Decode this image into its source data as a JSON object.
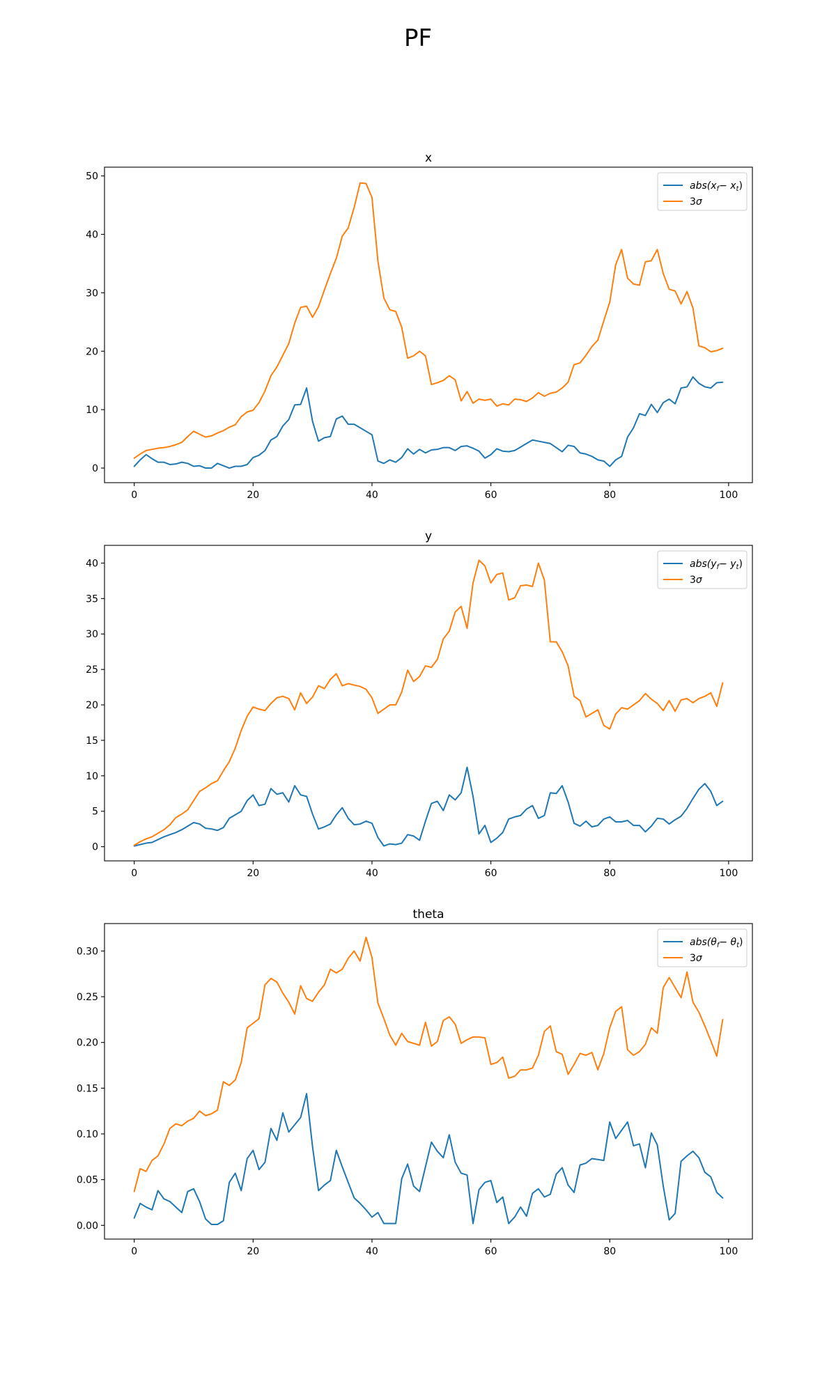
{
  "figure_title": "PF",
  "colors": {
    "error": "#1f77b4",
    "sigma": "#ff7f0e"
  },
  "chart_data": [
    {
      "type": "line",
      "title": "x",
      "xlim": [
        -5,
        104
      ],
      "ylim": [
        -2.5,
        51.5
      ],
      "xticks": [
        0,
        20,
        40,
        60,
        80,
        100
      ],
      "yticks": [
        0,
        10,
        20,
        30,
        40,
        50
      ],
      "ytick_labels": [
        "0",
        "10",
        "20",
        "30",
        "40",
        "50"
      ],
      "legend_position": "upper right",
      "series": [
        {
          "name": "abs(x_f − x_t)",
          "legend_math": [
            "abs(",
            "x",
            "f",
            "− ",
            "x",
            "t",
            ")"
          ],
          "color": "#1f77b4",
          "values": [
            0.3,
            1.4,
            2.3,
            1.6,
            1,
            1,
            0.6,
            0.7,
            1,
            0.8,
            0.3,
            0.4,
            0,
            0,
            0.8,
            0.4,
            0,
            0.3,
            0.3,
            0.6,
            1.8,
            2.2,
            3,
            4.8,
            5.4,
            7.2,
            8.3,
            10.8,
            10.9,
            13.7,
            8,
            4.6,
            5.2,
            5.4,
            8.4,
            8.9,
            7.5,
            7.5,
            6.9,
            6.3,
            5.7,
            1.2,
            0.8,
            1.4,
            1,
            1.8,
            3.3,
            2.4,
            3.2,
            2.6,
            3.1,
            3.2,
            3.5,
            3.5,
            3,
            3.7,
            3.8,
            3.4,
            2.9,
            1.7,
            2.3,
            3.3,
            2.9,
            2.8,
            3,
            3.6,
            4.2,
            4.8,
            4.6,
            4.4,
            4.2,
            3.5,
            2.8,
            3.9,
            3.7,
            2.6,
            2.4,
            2,
            1.4,
            1.2,
            0.3,
            1.4,
            2,
            5.3,
            6.9,
            9.3,
            9,
            10.9,
            9.5,
            11.2,
            11.8,
            11,
            13.7,
            13.9,
            15.6,
            14.5,
            13.9,
            13.7,
            14.6,
            14.7
          ]
        },
        {
          "name": "3σ",
          "legend_math": [
            "3",
            "σ"
          ],
          "color": "#ff7f0e",
          "values": [
            1.7,
            2.4,
            3,
            3.2,
            3.4,
            3.5,
            3.7,
            4,
            4.4,
            5.4,
            6.3,
            5.8,
            5.3,
            5.5,
            6,
            6.4,
            7,
            7.4,
            8.8,
            9.6,
            9.9,
            11.2,
            13.2,
            15.8,
            17.3,
            19.3,
            21.3,
            24.8,
            27.5,
            27.7,
            25.8,
            27.6,
            30.5,
            33.3,
            35.9,
            39.7,
            41.1,
            44.6,
            48.8,
            48.7,
            46.3,
            35.4,
            29.1,
            27.1,
            26.8,
            24.1,
            18.8,
            19.2,
            20,
            19.2,
            14.3,
            14.6,
            15,
            15.8,
            15.1,
            11.5,
            13.1,
            11.1,
            11.8,
            11.6,
            11.8,
            10.6,
            11,
            10.8,
            11.8,
            11.7,
            11.4,
            12,
            12.9,
            12.3,
            12.8,
            13,
            13.7,
            14.7,
            17.7,
            18,
            19.3,
            20.8,
            21.9,
            25.2,
            28.4,
            34.8,
            37.4,
            32.5,
            31.5,
            31.3,
            35.3,
            35.5,
            37.4,
            33.3,
            30.6,
            30.3,
            28.1,
            30.2,
            27.4,
            20.9,
            20.6,
            19.9,
            20.1,
            20.5
          ]
        }
      ]
    },
    {
      "type": "line",
      "title": "y",
      "xlim": [
        -5,
        104
      ],
      "ylim": [
        -2,
        42.5
      ],
      "xticks": [
        0,
        20,
        40,
        60,
        80,
        100
      ],
      "yticks": [
        0,
        5,
        10,
        15,
        20,
        25,
        30,
        35,
        40
      ],
      "ytick_labels": [
        "0",
        "5",
        "10",
        "15",
        "20",
        "25",
        "30",
        "35",
        "40"
      ],
      "legend_position": "upper right",
      "series": [
        {
          "name": "abs(y_f − y_t)",
          "legend_math": [
            "abs(",
            "y",
            "f",
            "− ",
            "y",
            "t",
            ")"
          ],
          "color": "#1f77b4",
          "values": [
            0.1,
            0.3,
            0.5,
            0.6,
            1,
            1.4,
            1.7,
            2,
            2.4,
            2.9,
            3.4,
            3.2,
            2.6,
            2.5,
            2.3,
            2.7,
            4,
            4.5,
            5,
            6.5,
            7.3,
            5.8,
            6,
            8.2,
            7.4,
            7.6,
            6.3,
            8.6,
            7.3,
            7.1,
            4.6,
            2.5,
            2.8,
            3.2,
            4.5,
            5.5,
            4,
            3.1,
            3.2,
            3.6,
            3.3,
            1.3,
            0.1,
            0.4,
            0.3,
            0.5,
            1.7,
            1.5,
            0.9,
            3.6,
            6.1,
            6.4,
            5.1,
            7.3,
            6.6,
            7.6,
            11.2,
            7.1,
            1.8,
            3,
            0.6,
            1.2,
            2,
            3.9,
            4.2,
            4.4,
            5.3,
            5.8,
            4,
            4.4,
            7.6,
            7.5,
            8.6,
            6.3,
            3.3,
            2.9,
            3.6,
            2.8,
            3,
            3.9,
            4.2,
            3.5,
            3.5,
            3.7,
            3,
            3,
            2.1,
            2.9,
            4,
            3.9,
            3.2,
            3.8,
            4.3,
            5.4,
            6.8,
            8.1,
            8.9,
            7.8,
            5.8,
            6.4
          ]
        },
        {
          "name": "3σ",
          "legend_math": [
            "3",
            "σ"
          ],
          "color": "#ff7f0e",
          "values": [
            0.2,
            0.7,
            1.1,
            1.4,
            1.9,
            2.4,
            3.1,
            4.1,
            4.6,
            5.2,
            6.5,
            7.8,
            8.3,
            8.9,
            9.3,
            10.7,
            12,
            13.9,
            16.4,
            18.4,
            19.7,
            19.4,
            19.2,
            20.2,
            21,
            21.2,
            20.9,
            19.3,
            21.7,
            20.2,
            21.1,
            22.7,
            22.3,
            23.6,
            24.4,
            22.7,
            23,
            22.8,
            22.6,
            22.2,
            21,
            18.8,
            19.4,
            20,
            20,
            21.8,
            24.9,
            23.3,
            24,
            25.5,
            25.3,
            26.4,
            29.3,
            30.4,
            33.1,
            33.9,
            30.8,
            37.2,
            40.4,
            39.6,
            37.2,
            38.4,
            38.6,
            34.8,
            35.1,
            36.8,
            36.9,
            36.7,
            40,
            37.6,
            28.9,
            28.9,
            27.5,
            25.5,
            21.2,
            20.6,
            18.3,
            18.8,
            19.3,
            17.1,
            16.6,
            18.7,
            19.6,
            19.4,
            20,
            20.6,
            21.6,
            20.8,
            20.2,
            19.2,
            20.6,
            19.1,
            20.7,
            20.9,
            20.3,
            20.9,
            21.2,
            21.7,
            19.8,
            23.1
          ]
        }
      ]
    },
    {
      "type": "line",
      "title": "theta",
      "xlim": [
        -5,
        104
      ],
      "ylim": [
        -0.015,
        0.33
      ],
      "xticks": [
        0,
        20,
        40,
        60,
        80,
        100
      ],
      "yticks": [
        0,
        0.05,
        0.1,
        0.15,
        0.2,
        0.25,
        0.3
      ],
      "ytick_labels": [
        "0.00",
        "0.05",
        "0.10",
        "0.15",
        "0.20",
        "0.25",
        "0.30"
      ],
      "legend_position": "upper right",
      "series": [
        {
          "name": "abs(θ_f − θ_t)",
          "legend_math": [
            "abs(",
            "θ",
            "f",
            "− ",
            "θ",
            "t",
            ")"
          ],
          "color": "#1f77b4",
          "values": [
            0.008,
            0.024,
            0.02,
            0.017,
            0.038,
            0.029,
            0.026,
            0.02,
            0.014,
            0.037,
            0.04,
            0.026,
            0.007,
            0.001,
            0.001,
            0.005,
            0.047,
            0.057,
            0.038,
            0.073,
            0.082,
            0.061,
            0.069,
            0.106,
            0.093,
            0.123,
            0.102,
            0.11,
            0.118,
            0.144,
            0.086,
            0.038,
            0.044,
            0.049,
            0.082,
            0.064,
            0.047,
            0.03,
            0.024,
            0.017,
            0.009,
            0.014,
            0.002,
            0.002,
            0.002,
            0.051,
            0.067,
            0.043,
            0.037,
            0.064,
            0.091,
            0.081,
            0.074,
            0.099,
            0.069,
            0.057,
            0.055,
            0.002,
            0.039,
            0.047,
            0.049,
            0.025,
            0.031,
            0.002,
            0.009,
            0.02,
            0.01,
            0.035,
            0.04,
            0.031,
            0.034,
            0.056,
            0.063,
            0.044,
            0.036,
            0.066,
            0.068,
            0.073,
            0.072,
            0.071,
            0.113,
            0.095,
            0.104,
            0.113,
            0.087,
            0.089,
            0.063,
            0.101,
            0.088,
            0.043,
            0.006,
            0.013,
            0.07,
            0.076,
            0.081,
            0.074,
            0.058,
            0.053,
            0.036,
            0.03
          ]
        },
        {
          "name": "3σ",
          "legend_math": [
            "3",
            "σ"
          ],
          "color": "#ff7f0e",
          "values": [
            0.037,
            0.062,
            0.059,
            0.071,
            0.076,
            0.089,
            0.106,
            0.111,
            0.109,
            0.114,
            0.117,
            0.125,
            0.12,
            0.122,
            0.126,
            0.157,
            0.153,
            0.159,
            0.178,
            0.216,
            0.221,
            0.226,
            0.263,
            0.27,
            0.266,
            0.254,
            0.244,
            0.231,
            0.262,
            0.248,
            0.245,
            0.255,
            0.263,
            0.28,
            0.276,
            0.28,
            0.292,
            0.3,
            0.289,
            0.315,
            0.293,
            0.243,
            0.226,
            0.208,
            0.197,
            0.21,
            0.201,
            0.199,
            0.197,
            0.222,
            0.196,
            0.201,
            0.224,
            0.228,
            0.22,
            0.199,
            0.203,
            0.206,
            0.206,
            0.205,
            0.176,
            0.178,
            0.184,
            0.161,
            0.163,
            0.17,
            0.17,
            0.172,
            0.186,
            0.212,
            0.218,
            0.19,
            0.187,
            0.165,
            0.176,
            0.188,
            0.186,
            0.189,
            0.17,
            0.188,
            0.216,
            0.234,
            0.239,
            0.192,
            0.186,
            0.19,
            0.198,
            0.216,
            0.21,
            0.26,
            0.271,
            0.26,
            0.249,
            0.277,
            0.244,
            0.233,
            0.218,
            0.202,
            0.185,
            0.225
          ]
        }
      ]
    }
  ]
}
